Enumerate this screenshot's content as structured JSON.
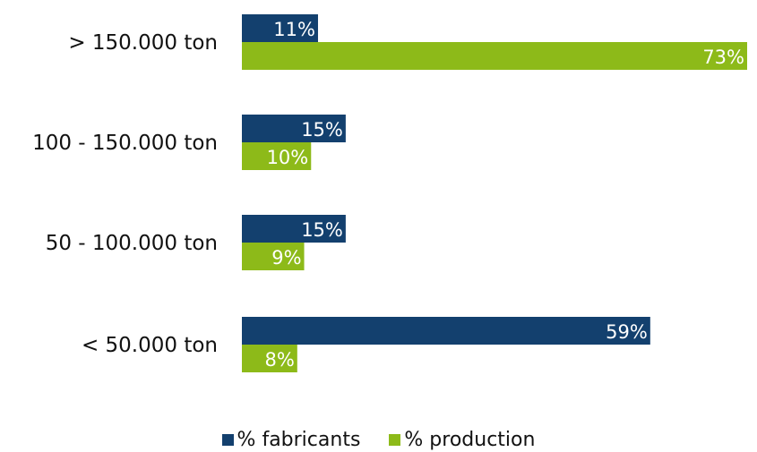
{
  "chart_data": {
    "type": "bar",
    "orientation": "horizontal",
    "categories": [
      "> 150.000 ton",
      "100 - 150.000 ton",
      "50 - 100.000 ton",
      "< 50.000 ton"
    ],
    "series": [
      {
        "name": "% fabricants",
        "values": [
          11,
          15,
          15,
          59
        ],
        "labels": [
          "11%",
          "15%",
          "15%",
          "59%"
        ],
        "color": "#13406e"
      },
      {
        "name": "% production",
        "values": [
          73,
          10,
          9,
          8
        ],
        "labels": [
          "73%",
          "10%",
          "9%",
          "8%"
        ],
        "color": "#8dba19"
      }
    ],
    "xlim": [
      0,
      73
    ],
    "grid": false,
    "legend_position": "bottom",
    "data_labels_position": "inside-end"
  }
}
